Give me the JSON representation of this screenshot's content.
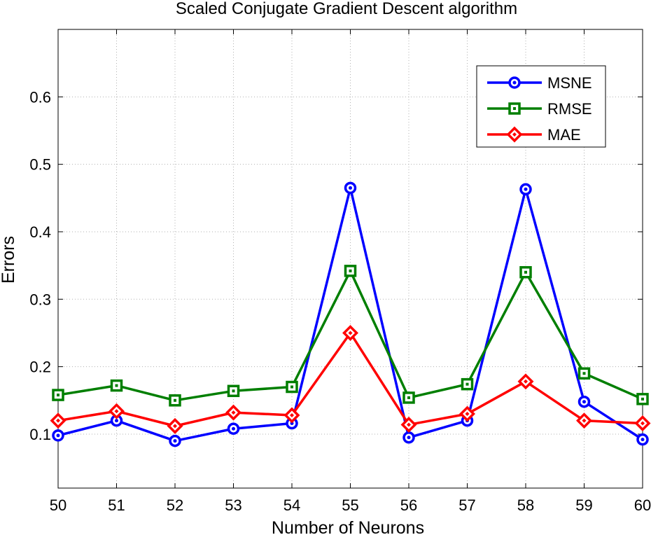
{
  "chart_data": {
    "type": "line",
    "title": "Scaled Conjugate Gradient Descent algorithm",
    "xlabel": "Number of Neurons",
    "ylabel": "Errors",
    "x": [
      50,
      51,
      52,
      53,
      54,
      55,
      56,
      57,
      58,
      59,
      60
    ],
    "xlim": [
      50,
      60
    ],
    "ylim": [
      0.02,
      0.7
    ],
    "xticks": [
      "50",
      "51",
      "52",
      "53",
      "54",
      "55",
      "56",
      "57",
      "58",
      "59",
      "60"
    ],
    "yticks": [
      0.1,
      0.2,
      0.3,
      0.4,
      0.5,
      0.6
    ],
    "ytick_labels": [
      "0.1",
      "0.2",
      "0.3",
      "0.4",
      "0.5",
      "0.6"
    ],
    "grid": true,
    "legend_position": "top-right",
    "series": [
      {
        "name": "MSNE",
        "color": "#0000ff",
        "marker": "circle",
        "values": [
          0.098,
          0.12,
          0.09,
          0.108,
          0.116,
          0.465,
          0.095,
          0.12,
          0.463,
          0.148,
          0.092
        ]
      },
      {
        "name": "RMSE",
        "color": "#007f00",
        "marker": "square",
        "values": [
          0.158,
          0.172,
          0.15,
          0.164,
          0.17,
          0.342,
          0.154,
          0.174,
          0.34,
          0.19,
          0.152
        ]
      },
      {
        "name": "MAE",
        "color": "#ff0000",
        "marker": "diamond",
        "values": [
          0.12,
          0.134,
          0.112,
          0.132,
          0.128,
          0.25,
          0.114,
          0.13,
          0.178,
          0.12,
          0.116
        ]
      }
    ]
  }
}
